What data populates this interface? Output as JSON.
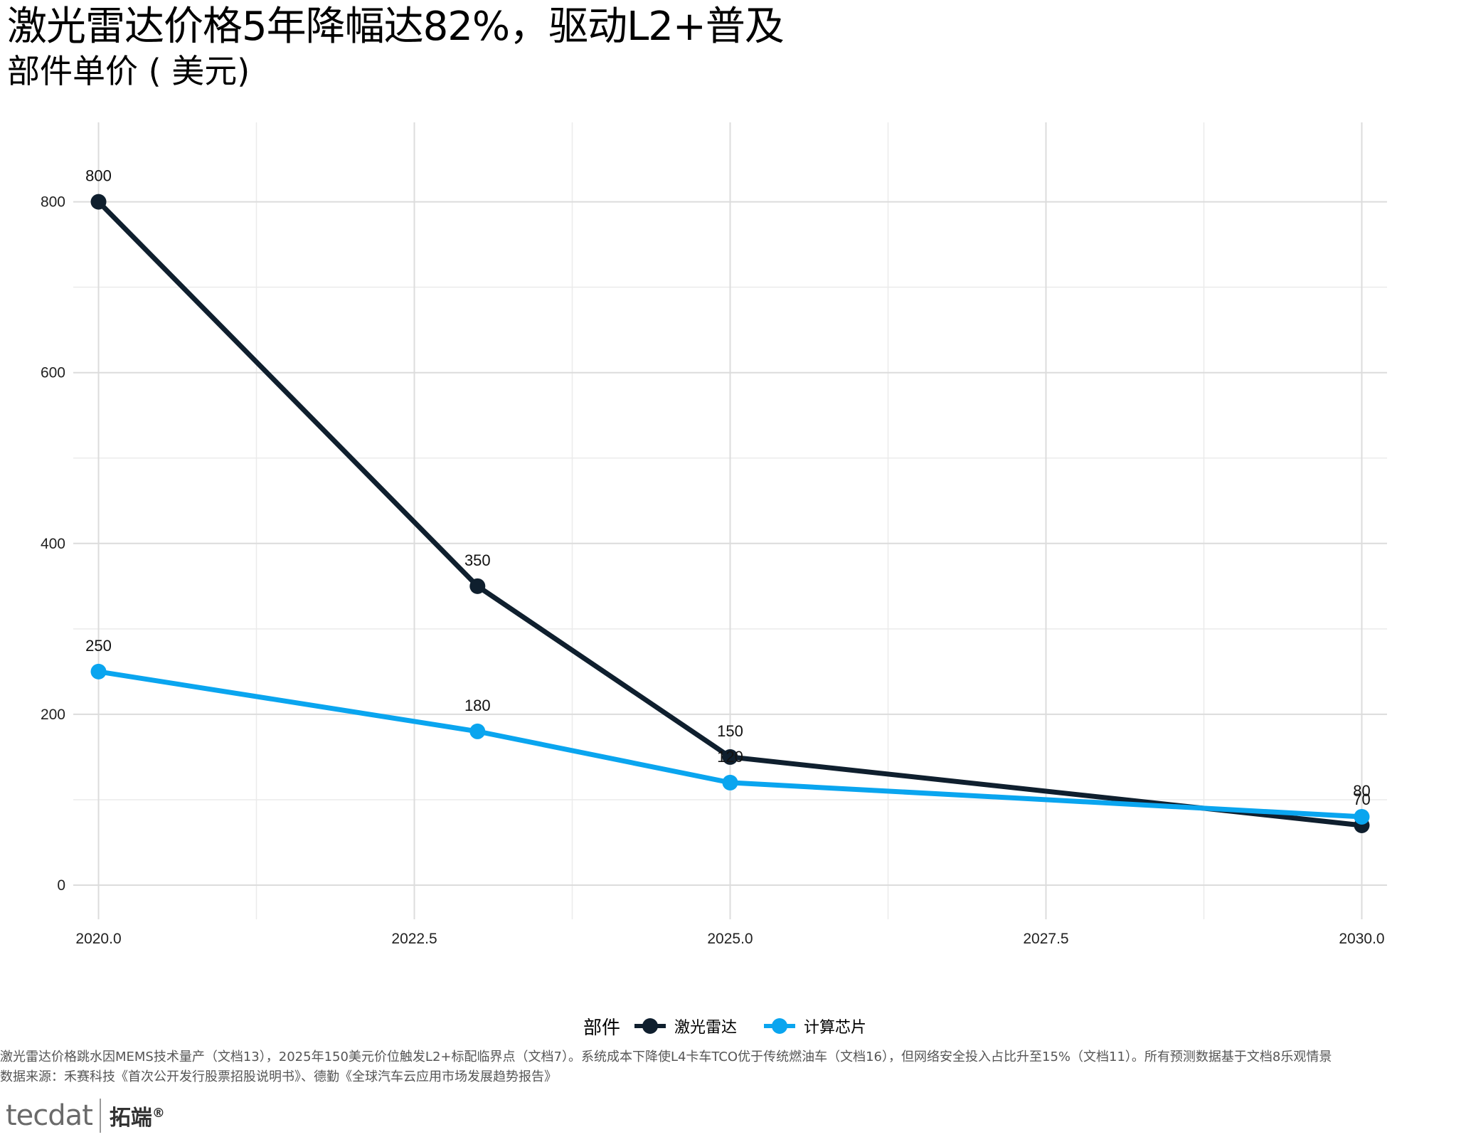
{
  "title": "激光雷达价格5年降幅达82%，驱动L2+普及",
  "subtitle": "部件单价 ( 美元)",
  "chart_data": {
    "type": "line",
    "title": "激光雷达价格5年降幅达82%，驱动L2+普及",
    "subtitle": "部件单价 ( 美元)",
    "xlabel": "",
    "ylabel": "",
    "xlim": [
      2019.8,
      2030.2
    ],
    "ylim": [
      -40,
      893
    ],
    "x_ticks": [
      2020.0,
      2022.5,
      2025.0,
      2027.5,
      2030.0
    ],
    "x_tick_labels": [
      "2020.0",
      "2022.5",
      "2025.0",
      "2027.5",
      "2030.0"
    ],
    "y_ticks": [
      0,
      200,
      400,
      600,
      800
    ],
    "y_tick_labels": [
      "0",
      "200",
      "400",
      "600",
      "800"
    ],
    "grid": true,
    "legend_position": "bottom",
    "legend_title": "部件",
    "series": [
      {
        "name": "激光雷达",
        "color": "#0f1f2e",
        "x": [
          2020,
          2023,
          2025,
          2030
        ],
        "values": [
          800,
          350,
          150,
          70
        ],
        "labels": [
          "800",
          "350",
          "150",
          "70"
        ]
      },
      {
        "name": "计算芯片",
        "color": "#0aa5ef",
        "x": [
          2020,
          2023,
          2025,
          2030
        ],
        "values": [
          250,
          180,
          120,
          80
        ],
        "labels": [
          "250",
          "180",
          "120",
          "80"
        ]
      }
    ]
  },
  "legend": {
    "title": "部件",
    "items": [
      {
        "label": "激光雷达",
        "color": "#0f1f2e"
      },
      {
        "label": "计算芯片",
        "color": "#0aa5ef"
      }
    ]
  },
  "caption": {
    "line1": "激光雷达价格跳水因MEMS技术量产（文档13），2025年150美元价位触发L2+标配临界点（文档7）。系统成本下降使L4卡车TCO优于传统燃油车（文档16），但网络安全投入占比升至15%（文档11）。所有预测数据基于文档8乐观情景",
    "line2": "数据来源：禾赛科技《首次公开发行股票招股说明书》、德勤《全球汽车云应用市场发展趋势报告》"
  },
  "logo": {
    "mark": "tecdat",
    "cn": "拓端",
    "reg": "®"
  }
}
